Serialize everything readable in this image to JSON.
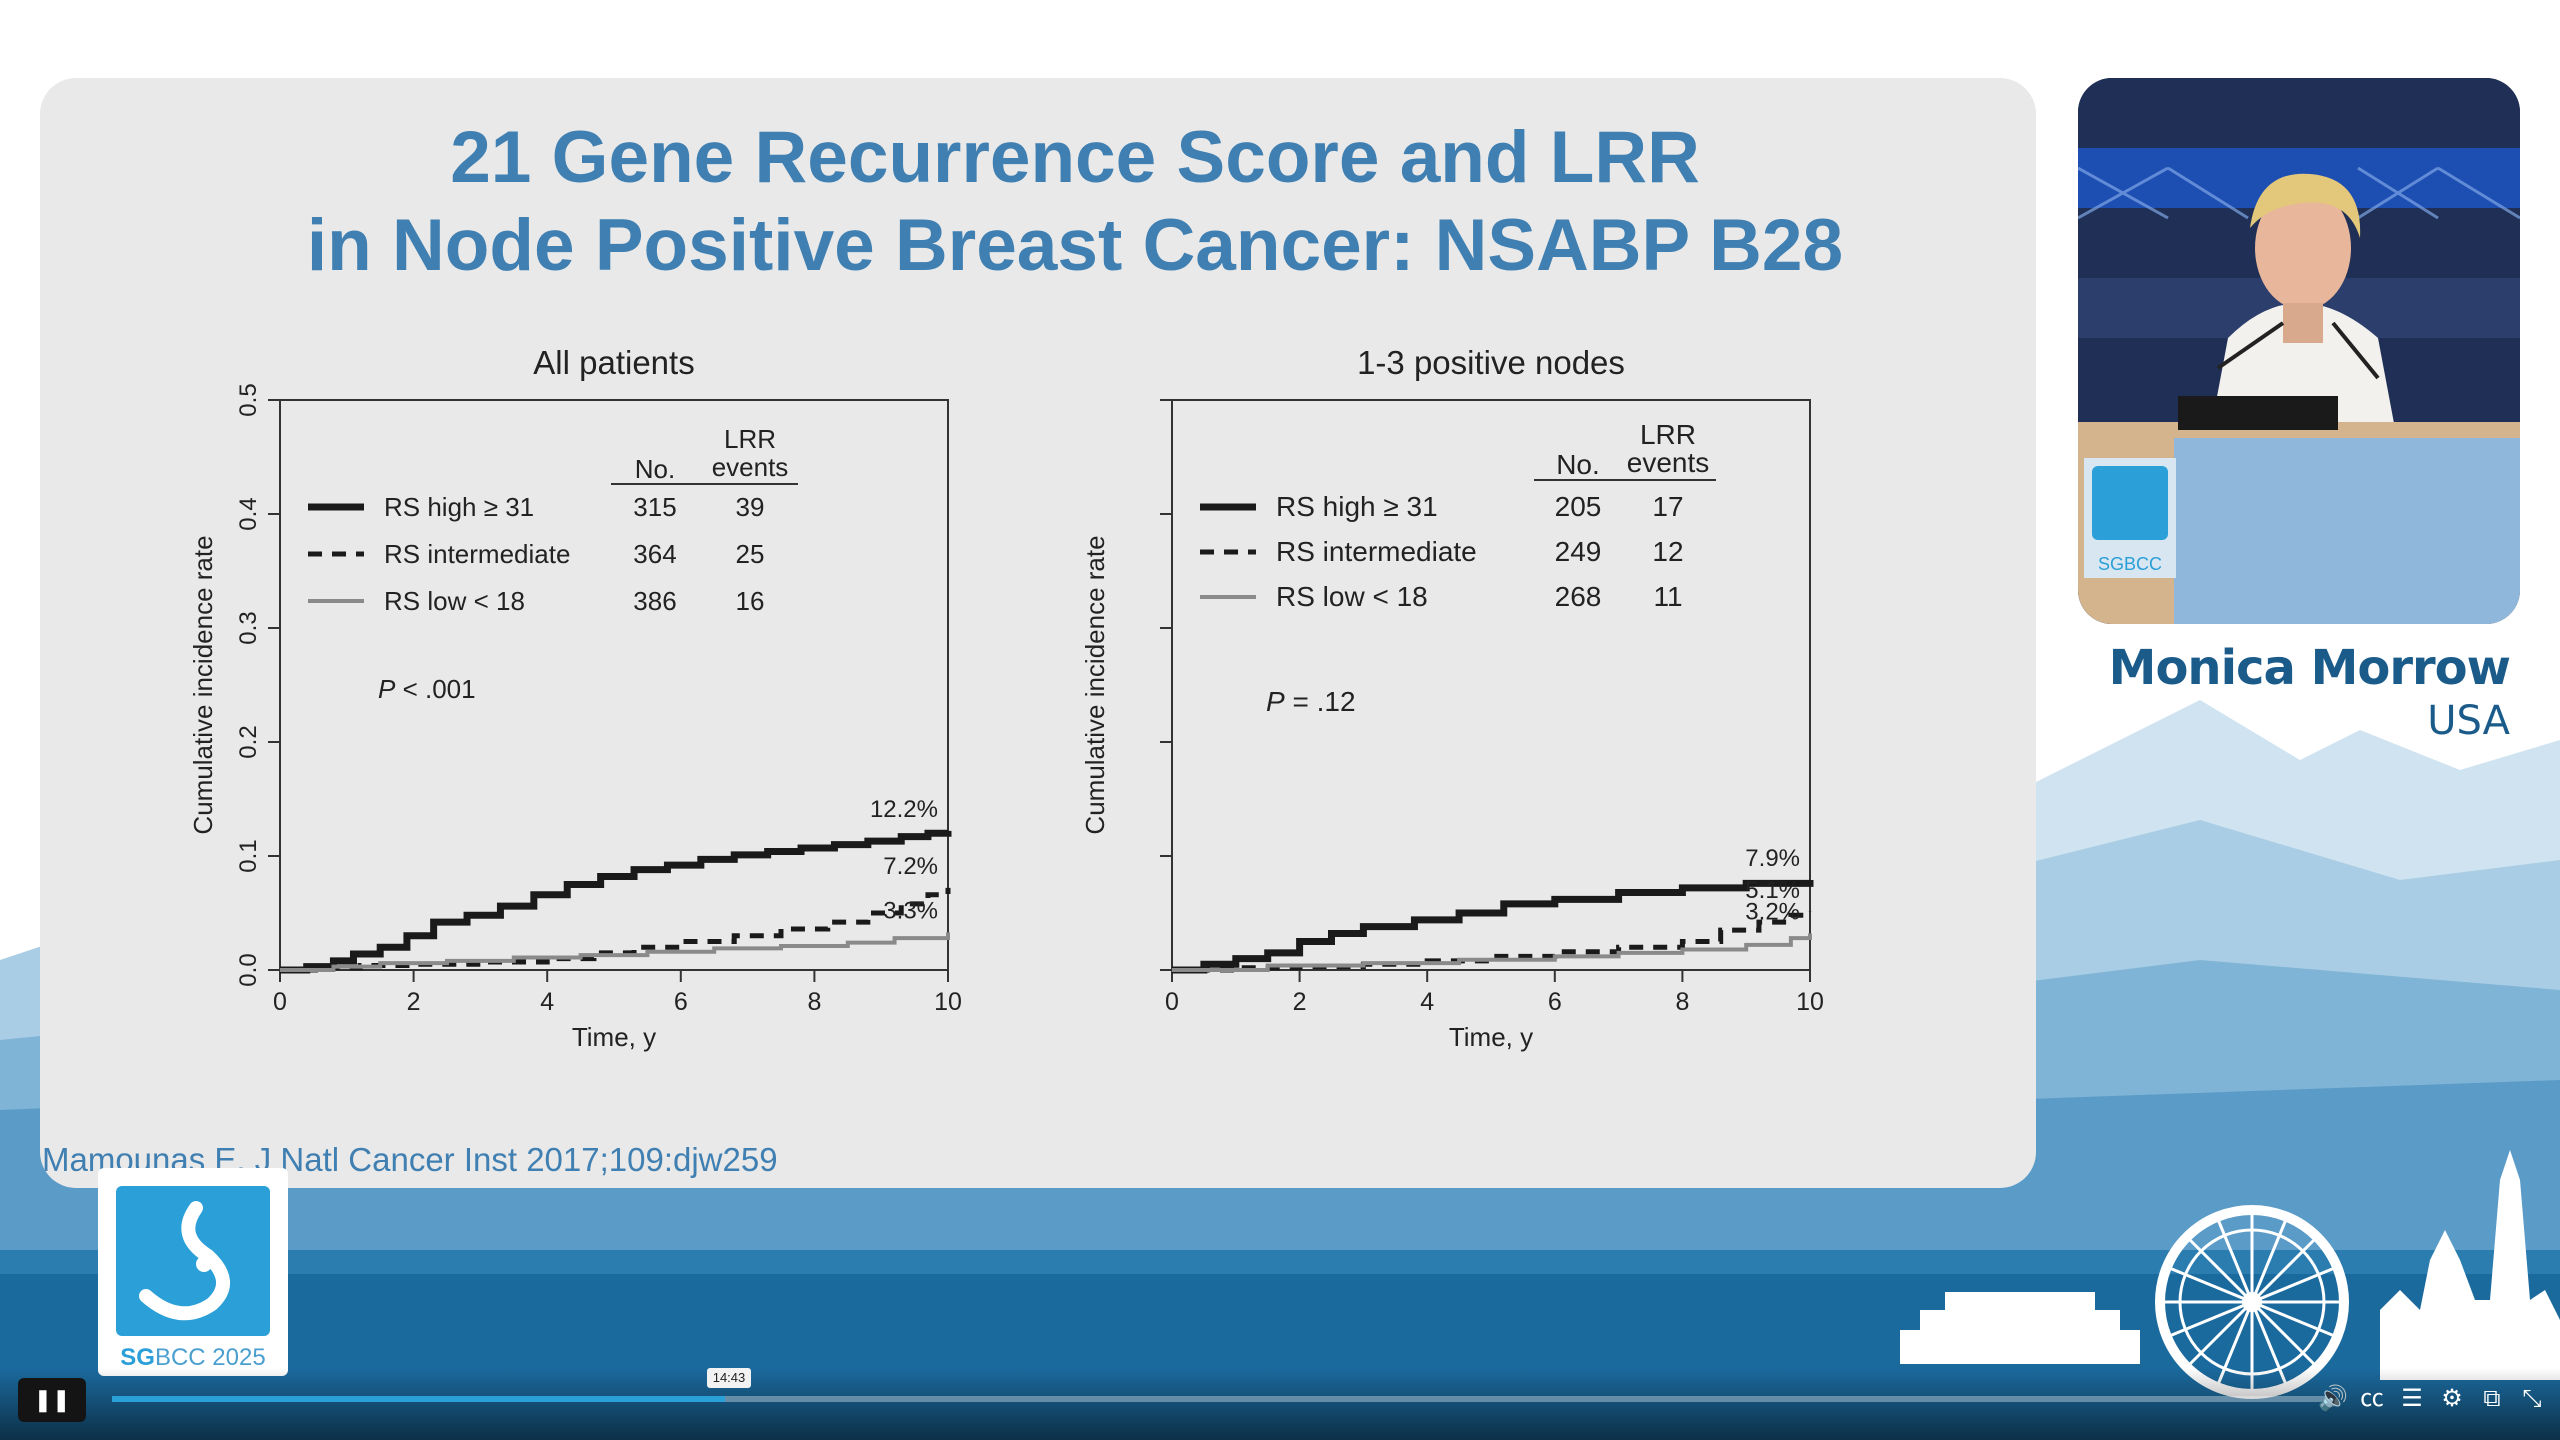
{
  "slide": {
    "title_line1": "21 Gene Recurrence Score and LRR",
    "title_line2": "in Node Positive Breast Cancer: NSABP B28",
    "citation": "Mamounas E. J Natl Cancer Inst 2017;109:djw259"
  },
  "speaker": {
    "name": "Monica Morrow",
    "country": "USA"
  },
  "logo": {
    "prefix": "SG",
    "suffix": "BCC 2025",
    "video_logo": "SGBCC"
  },
  "player": {
    "time_tooltip": "14:43",
    "progress_fraction": 0.276,
    "icons": [
      "volume-icon",
      "captions-icon",
      "transcript-icon",
      "settings-icon",
      "pip-icon",
      "exit-fullscreen-icon"
    ]
  },
  "colors": {
    "slide_title": "#3f7fb1",
    "brand_blue": "#2b9fd7",
    "band_blue": "#1b6a9e"
  },
  "chart_data": [
    {
      "type": "line",
      "title": "All patients",
      "xlabel": "Time, y",
      "ylabel": "Cumulative incidence rate",
      "xlim": [
        0,
        10
      ],
      "ylim": [
        0,
        0.5
      ],
      "xticks": [
        "0",
        "2",
        "4",
        "6",
        "8",
        "10"
      ],
      "yticks": [
        "0.0",
        "0.1",
        "0.2",
        "0.3",
        "0.4",
        "0.5"
      ],
      "table_header": {
        "no": "No.",
        "events_line1": "LRR",
        "events_line2": "events"
      },
      "pvalue_label": "P",
      "pvalue_text": " < .001",
      "series": [
        {
          "name": "RS high ≥ 31",
          "no": "315",
          "events": "39",
          "end_label": "12.2%",
          "style": "solid-thick",
          "x": [
            0,
            0.4,
            0.8,
            1.1,
            1.5,
            1.9,
            2.3,
            2.8,
            3.3,
            3.8,
            4.3,
            4.8,
            5.3,
            5.8,
            6.3,
            6.8,
            7.3,
            7.8,
            8.3,
            8.8,
            9.3,
            9.7,
            10
          ],
          "y": [
            0,
            0.003,
            0.008,
            0.014,
            0.02,
            0.03,
            0.042,
            0.048,
            0.056,
            0.066,
            0.075,
            0.082,
            0.088,
            0.092,
            0.097,
            0.101,
            0.104,
            0.107,
            0.11,
            0.113,
            0.117,
            0.12,
            0.122
          ]
        },
        {
          "name": "RS intermediate",
          "no": "364",
          "events": "25",
          "end_label": "7.2%",
          "style": "dashed-thick",
          "x": [
            0,
            0.6,
            1.2,
            2.0,
            3.0,
            4.0,
            4.7,
            5.3,
            6.0,
            6.8,
            7.5,
            8.2,
            8.8,
            9.3,
            9.7,
            10
          ],
          "y": [
            0,
            0.002,
            0.004,
            0.005,
            0.007,
            0.01,
            0.015,
            0.02,
            0.025,
            0.03,
            0.036,
            0.042,
            0.05,
            0.058,
            0.066,
            0.072
          ]
        },
        {
          "name": "RS low < 18",
          "no": "386",
          "events": "16",
          "end_label": "3.3%",
          "style": "solid-gray",
          "x": [
            0,
            0.8,
            1.5,
            2.5,
            3.5,
            4.5,
            5.5,
            6.5,
            7.5,
            8.5,
            9.2,
            10
          ],
          "y": [
            0,
            0.003,
            0.006,
            0.008,
            0.011,
            0.013,
            0.016,
            0.019,
            0.021,
            0.024,
            0.028,
            0.033
          ]
        }
      ]
    },
    {
      "type": "line",
      "title": "1-3 positive nodes",
      "xlabel": "Time, y",
      "ylabel": "Cumulative incidence rate",
      "xlim": [
        0,
        10
      ],
      "ylim": [
        0,
        0.5
      ],
      "xticks": [
        "0",
        "2",
        "4",
        "6",
        "8",
        "10"
      ],
      "yticks": [],
      "table_header": {
        "no": "No.",
        "events_line1": "LRR",
        "events_line2": "events"
      },
      "pvalue_label": "P",
      "pvalue_text": " = .12",
      "series": [
        {
          "name": "RS high ≥ 31",
          "no": "205",
          "events": "17",
          "end_label": "7.9%",
          "style": "solid-thick",
          "x": [
            0,
            0.5,
            1.0,
            1.5,
            2.0,
            2.5,
            3.0,
            3.8,
            4.5,
            5.2,
            6.0,
            7.0,
            8.0,
            9.0,
            10
          ],
          "y": [
            0,
            0.005,
            0.01,
            0.015,
            0.025,
            0.032,
            0.038,
            0.044,
            0.05,
            0.058,
            0.062,
            0.068,
            0.072,
            0.076,
            0.079
          ]
        },
        {
          "name": "RS intermediate",
          "no": "249",
          "events": "12",
          "end_label": "5.1%",
          "style": "dashed-thick",
          "x": [
            0,
            1.0,
            2.0,
            3.0,
            4.0,
            5.0,
            6.0,
            7.0,
            8.0,
            8.6,
            9.2,
            9.7,
            10
          ],
          "y": [
            0,
            0.002,
            0.003,
            0.005,
            0.008,
            0.012,
            0.016,
            0.02,
            0.025,
            0.035,
            0.042,
            0.048,
            0.051
          ]
        },
        {
          "name": "RS low < 18",
          "no": "268",
          "events": "11",
          "end_label": "3.2%",
          "style": "solid-gray",
          "x": [
            0,
            1.5,
            3.0,
            4.5,
            6.0,
            7.0,
            8.0,
            9.0,
            9.7,
            10
          ],
          "y": [
            0,
            0.004,
            0.006,
            0.009,
            0.012,
            0.015,
            0.018,
            0.022,
            0.028,
            0.032
          ]
        }
      ]
    }
  ]
}
